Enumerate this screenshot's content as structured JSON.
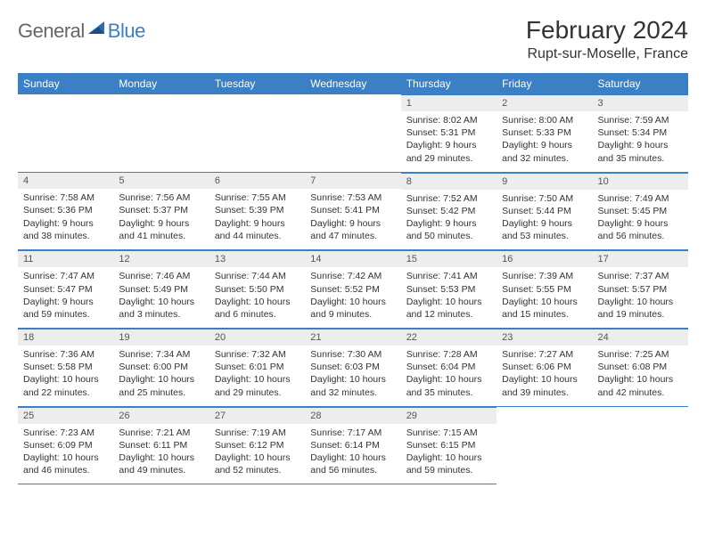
{
  "logo": {
    "text1": "General",
    "text2": "Blue"
  },
  "title": "February 2024",
  "location": "Rupt-sur-Moselle, France",
  "colors": {
    "accent": "#3b7fc4",
    "headerBg": "#3b7fc4",
    "dayNumBg": "#ededed",
    "text": "#333333"
  },
  "dayHeaders": [
    "Sunday",
    "Monday",
    "Tuesday",
    "Wednesday",
    "Thursday",
    "Friday",
    "Saturday"
  ],
  "weeks": [
    [
      null,
      null,
      null,
      null,
      {
        "n": "1",
        "sunrise": "8:02 AM",
        "sunset": "5:31 PM",
        "daylight": "9 hours and 29 minutes."
      },
      {
        "n": "2",
        "sunrise": "8:00 AM",
        "sunset": "5:33 PM",
        "daylight": "9 hours and 32 minutes."
      },
      {
        "n": "3",
        "sunrise": "7:59 AM",
        "sunset": "5:34 PM",
        "daylight": "9 hours and 35 minutes."
      }
    ],
    [
      {
        "n": "4",
        "sunrise": "7:58 AM",
        "sunset": "5:36 PM",
        "daylight": "9 hours and 38 minutes."
      },
      {
        "n": "5",
        "sunrise": "7:56 AM",
        "sunset": "5:37 PM",
        "daylight": "9 hours and 41 minutes."
      },
      {
        "n": "6",
        "sunrise": "7:55 AM",
        "sunset": "5:39 PM",
        "daylight": "9 hours and 44 minutes."
      },
      {
        "n": "7",
        "sunrise": "7:53 AM",
        "sunset": "5:41 PM",
        "daylight": "9 hours and 47 minutes."
      },
      {
        "n": "8",
        "sunrise": "7:52 AM",
        "sunset": "5:42 PM",
        "daylight": "9 hours and 50 minutes."
      },
      {
        "n": "9",
        "sunrise": "7:50 AM",
        "sunset": "5:44 PM",
        "daylight": "9 hours and 53 minutes."
      },
      {
        "n": "10",
        "sunrise": "7:49 AM",
        "sunset": "5:45 PM",
        "daylight": "9 hours and 56 minutes."
      }
    ],
    [
      {
        "n": "11",
        "sunrise": "7:47 AM",
        "sunset": "5:47 PM",
        "daylight": "9 hours and 59 minutes."
      },
      {
        "n": "12",
        "sunrise": "7:46 AM",
        "sunset": "5:49 PM",
        "daylight": "10 hours and 3 minutes."
      },
      {
        "n": "13",
        "sunrise": "7:44 AM",
        "sunset": "5:50 PM",
        "daylight": "10 hours and 6 minutes."
      },
      {
        "n": "14",
        "sunrise": "7:42 AM",
        "sunset": "5:52 PM",
        "daylight": "10 hours and 9 minutes."
      },
      {
        "n": "15",
        "sunrise": "7:41 AM",
        "sunset": "5:53 PM",
        "daylight": "10 hours and 12 minutes."
      },
      {
        "n": "16",
        "sunrise": "7:39 AM",
        "sunset": "5:55 PM",
        "daylight": "10 hours and 15 minutes."
      },
      {
        "n": "17",
        "sunrise": "7:37 AM",
        "sunset": "5:57 PM",
        "daylight": "10 hours and 19 minutes."
      }
    ],
    [
      {
        "n": "18",
        "sunrise": "7:36 AM",
        "sunset": "5:58 PM",
        "daylight": "10 hours and 22 minutes."
      },
      {
        "n": "19",
        "sunrise": "7:34 AM",
        "sunset": "6:00 PM",
        "daylight": "10 hours and 25 minutes."
      },
      {
        "n": "20",
        "sunrise": "7:32 AM",
        "sunset": "6:01 PM",
        "daylight": "10 hours and 29 minutes."
      },
      {
        "n": "21",
        "sunrise": "7:30 AM",
        "sunset": "6:03 PM",
        "daylight": "10 hours and 32 minutes."
      },
      {
        "n": "22",
        "sunrise": "7:28 AM",
        "sunset": "6:04 PM",
        "daylight": "10 hours and 35 minutes."
      },
      {
        "n": "23",
        "sunrise": "7:27 AM",
        "sunset": "6:06 PM",
        "daylight": "10 hours and 39 minutes."
      },
      {
        "n": "24",
        "sunrise": "7:25 AM",
        "sunset": "6:08 PM",
        "daylight": "10 hours and 42 minutes."
      }
    ],
    [
      {
        "n": "25",
        "sunrise": "7:23 AM",
        "sunset": "6:09 PM",
        "daylight": "10 hours and 46 minutes."
      },
      {
        "n": "26",
        "sunrise": "7:21 AM",
        "sunset": "6:11 PM",
        "daylight": "10 hours and 49 minutes."
      },
      {
        "n": "27",
        "sunrise": "7:19 AM",
        "sunset": "6:12 PM",
        "daylight": "10 hours and 52 minutes."
      },
      {
        "n": "28",
        "sunrise": "7:17 AM",
        "sunset": "6:14 PM",
        "daylight": "10 hours and 56 minutes."
      },
      {
        "n": "29",
        "sunrise": "7:15 AM",
        "sunset": "6:15 PM",
        "daylight": "10 hours and 59 minutes."
      },
      null,
      null
    ]
  ],
  "labels": {
    "sunrise": "Sunrise:",
    "sunset": "Sunset:",
    "daylight": "Daylight:"
  }
}
